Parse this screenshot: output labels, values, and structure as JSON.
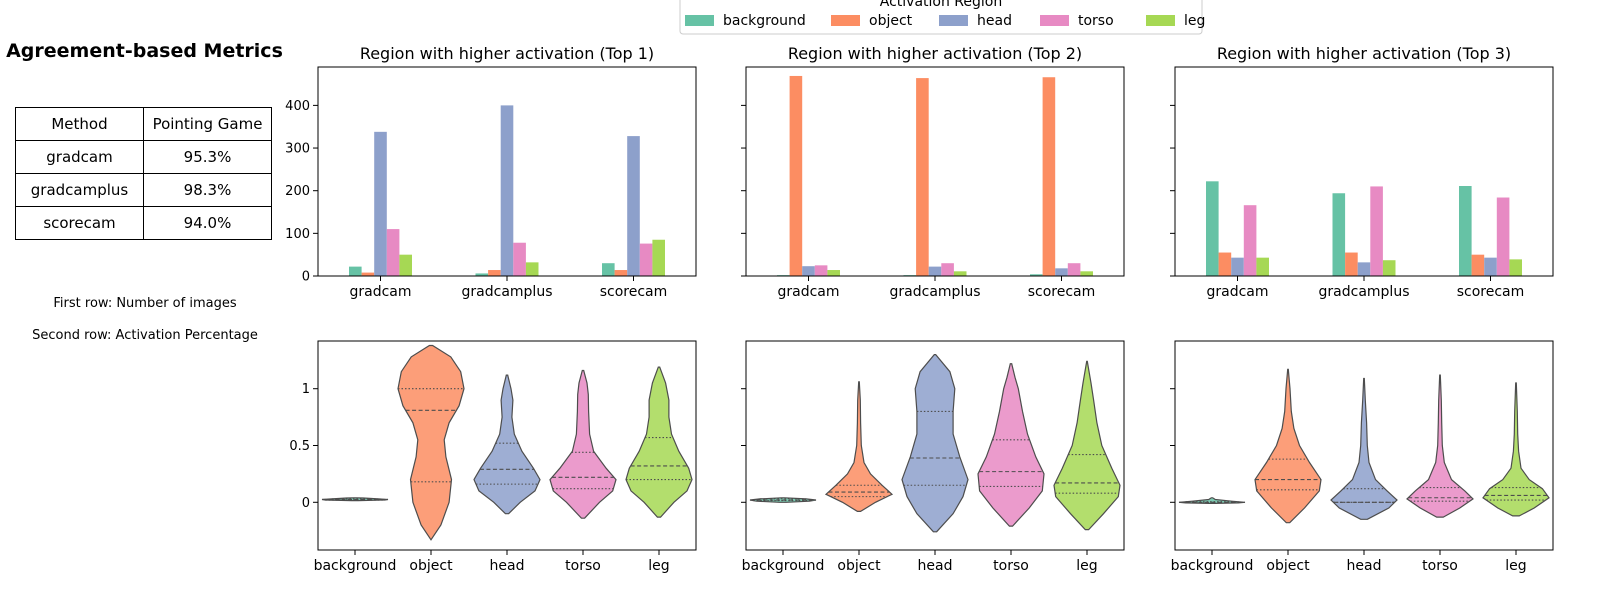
{
  "left_panel": {
    "title": "Agreement-based Metrics",
    "table": {
      "headers": [
        "Method",
        "Pointing Game"
      ],
      "rows": [
        [
          "gradcam",
          "95.3%"
        ],
        [
          "gradcamplus",
          "98.3%"
        ],
        [
          "scorecam",
          "94.0%"
        ]
      ]
    },
    "note_line1": "First row: Number of images",
    "note_line2": "Second row: Activation Percentage"
  },
  "legend": {
    "title": "Activation Region",
    "entries": [
      {
        "label": "background",
        "color": "#66c2a5"
      },
      {
        "label": "object",
        "color": "#fc8d62"
      },
      {
        "label": "head",
        "color": "#8da0cb"
      },
      {
        "label": "torso",
        "color": "#e78ac3"
      },
      {
        "label": "leg",
        "color": "#a6d854"
      }
    ]
  },
  "chart_data": [
    {
      "type": "bar",
      "title": "Region with higher activation (Top 1)",
      "categories": [
        "gradcam",
        "gradcamplus",
        "scorecam"
      ],
      "ylim": [
        0,
        490
      ],
      "yticks": [
        0,
        100,
        200,
        300,
        400
      ],
      "series": [
        {
          "name": "background",
          "values": [
            22,
            6,
            30
          ]
        },
        {
          "name": "object",
          "values": [
            8,
            14,
            14
          ]
        },
        {
          "name": "head",
          "values": [
            338,
            400,
            328
          ]
        },
        {
          "name": "torso",
          "values": [
            110,
            78,
            76
          ]
        },
        {
          "name": "leg",
          "values": [
            50,
            32,
            85
          ]
        }
      ]
    },
    {
      "type": "bar",
      "title": "Region with higher activation (Top 2)",
      "categories": [
        "gradcam",
        "gradcamplus",
        "scorecam"
      ],
      "ylim": [
        0,
        490
      ],
      "yticks": [
        0,
        100,
        200,
        300,
        400
      ],
      "series": [
        {
          "name": "background",
          "values": [
            2,
            2,
            4
          ]
        },
        {
          "name": "object",
          "values": [
            469,
            464,
            466
          ]
        },
        {
          "name": "head",
          "values": [
            23,
            22,
            18
          ]
        },
        {
          "name": "torso",
          "values": [
            25,
            30,
            30
          ]
        },
        {
          "name": "leg",
          "values": [
            14,
            11,
            11
          ]
        }
      ]
    },
    {
      "type": "bar",
      "title": "Region with higher activation (Top 3)",
      "categories": [
        "gradcam",
        "gradcamplus",
        "scorecam"
      ],
      "ylim": [
        0,
        490
      ],
      "yticks": [
        0,
        100,
        200,
        300,
        400
      ],
      "series": [
        {
          "name": "background",
          "values": [
            222,
            194,
            211
          ]
        },
        {
          "name": "object",
          "values": [
            55,
            55,
            50
          ]
        },
        {
          "name": "head",
          "values": [
            43,
            32,
            43
          ]
        },
        {
          "name": "torso",
          "values": [
            166,
            210,
            184
          ]
        },
        {
          "name": "leg",
          "values": [
            43,
            37,
            39
          ]
        }
      ]
    },
    {
      "type": "violin",
      "categories": [
        "background",
        "object",
        "head",
        "torso",
        "leg"
      ],
      "ylim": [
        -0.42,
        1.42
      ],
      "yticks": [
        0.0,
        0.5,
        1.0
      ],
      "violins": [
        {
          "min": 0.015,
          "max": 0.04,
          "quartiles": [
            0.02,
            0.025,
            0.03
          ],
          "profile": [
            [
              0.015,
              0.1
            ],
            [
              0.02,
              0.9
            ],
            [
              0.025,
              1.0
            ],
            [
              0.03,
              0.7
            ],
            [
              0.038,
              0.25
            ],
            [
              0.04,
              0.05
            ]
          ]
        },
        {
          "min": -0.33,
          "max": 1.38,
          "quartiles": [
            0.18,
            0.81,
            1.0
          ],
          "profile": [
            [
              -0.33,
              0.0
            ],
            [
              -0.2,
              0.3
            ],
            [
              0.0,
              0.55
            ],
            [
              0.2,
              0.62
            ],
            [
              0.4,
              0.45
            ],
            [
              0.55,
              0.4
            ],
            [
              0.7,
              0.55
            ],
            [
              0.85,
              0.85
            ],
            [
              1.0,
              1.0
            ],
            [
              1.15,
              0.9
            ],
            [
              1.28,
              0.6
            ],
            [
              1.38,
              0.05
            ]
          ]
        },
        {
          "min": -0.1,
          "max": 1.12,
          "quartiles": [
            0.16,
            0.29,
            0.52
          ],
          "profile": [
            [
              -0.1,
              0.05
            ],
            [
              0.0,
              0.4
            ],
            [
              0.1,
              0.85
            ],
            [
              0.2,
              1.0
            ],
            [
              0.3,
              0.8
            ],
            [
              0.45,
              0.45
            ],
            [
              0.6,
              0.22
            ],
            [
              0.75,
              0.15
            ],
            [
              0.9,
              0.18
            ],
            [
              1.0,
              0.12
            ],
            [
              1.12,
              0.02
            ]
          ]
        },
        {
          "min": -0.14,
          "max": 1.16,
          "quartiles": [
            0.12,
            0.22,
            0.44
          ],
          "profile": [
            [
              -0.14,
              0.05
            ],
            [
              0.0,
              0.5
            ],
            [
              0.1,
              0.9
            ],
            [
              0.2,
              1.0
            ],
            [
              0.3,
              0.7
            ],
            [
              0.45,
              0.32
            ],
            [
              0.6,
              0.2
            ],
            [
              0.8,
              0.17
            ],
            [
              0.95,
              0.16
            ],
            [
              1.05,
              0.12
            ],
            [
              1.16,
              0.02
            ]
          ]
        },
        {
          "min": -0.13,
          "max": 1.19,
          "quartiles": [
            0.2,
            0.32,
            0.57
          ],
          "profile": [
            [
              -0.13,
              0.05
            ],
            [
              0.0,
              0.45
            ],
            [
              0.1,
              0.85
            ],
            [
              0.2,
              1.0
            ],
            [
              0.3,
              0.9
            ],
            [
              0.45,
              0.6
            ],
            [
              0.6,
              0.38
            ],
            [
              0.75,
              0.3
            ],
            [
              0.9,
              0.3
            ],
            [
              1.05,
              0.2
            ],
            [
              1.19,
              0.02
            ]
          ]
        }
      ]
    },
    {
      "type": "violin",
      "categories": [
        "background",
        "object",
        "head",
        "torso",
        "leg"
      ],
      "ylim": [
        -0.42,
        1.42
      ],
      "yticks": [
        0.0,
        0.5,
        1.0
      ],
      "violins": [
        {
          "min": 0.0,
          "max": 0.04,
          "quartiles": [
            0.015,
            0.02,
            0.03
          ],
          "profile": [
            [
              0.0,
              0.1
            ],
            [
              0.01,
              0.8
            ],
            [
              0.02,
              1.0
            ],
            [
              0.03,
              0.7
            ],
            [
              0.04,
              0.05
            ]
          ]
        },
        {
          "min": -0.08,
          "max": 1.06,
          "quartiles": [
            0.05,
            0.09,
            0.15
          ],
          "profile": [
            [
              -0.08,
              0.05
            ],
            [
              0.0,
              0.5
            ],
            [
              0.07,
              1.0
            ],
            [
              0.15,
              0.7
            ],
            [
              0.25,
              0.35
            ],
            [
              0.35,
              0.15
            ],
            [
              0.5,
              0.07
            ],
            [
              0.7,
              0.05
            ],
            [
              0.9,
              0.04
            ],
            [
              1.06,
              0.01
            ]
          ]
        },
        {
          "min": -0.26,
          "max": 1.3,
          "quartiles": [
            0.15,
            0.39,
            0.8
          ],
          "profile": [
            [
              -0.26,
              0.05
            ],
            [
              -0.1,
              0.55
            ],
            [
              0.05,
              0.85
            ],
            [
              0.2,
              1.0
            ],
            [
              0.4,
              0.75
            ],
            [
              0.6,
              0.55
            ],
            [
              0.8,
              0.55
            ],
            [
              1.0,
              0.6
            ],
            [
              1.15,
              0.45
            ],
            [
              1.3,
              0.02
            ]
          ]
        },
        {
          "min": -0.21,
          "max": 1.22,
          "quartiles": [
            0.14,
            0.27,
            0.55
          ],
          "profile": [
            [
              -0.21,
              0.05
            ],
            [
              -0.05,
              0.55
            ],
            [
              0.1,
              0.95
            ],
            [
              0.25,
              1.0
            ],
            [
              0.4,
              0.75
            ],
            [
              0.6,
              0.5
            ],
            [
              0.8,
              0.35
            ],
            [
              1.0,
              0.22
            ],
            [
              1.1,
              0.12
            ],
            [
              1.22,
              0.02
            ]
          ]
        },
        {
          "min": -0.24,
          "max": 1.24,
          "quartiles": [
            0.08,
            0.17,
            0.42
          ],
          "profile": [
            [
              -0.24,
              0.05
            ],
            [
              -0.1,
              0.5
            ],
            [
              0.05,
              0.95
            ],
            [
              0.15,
              1.0
            ],
            [
              0.3,
              0.75
            ],
            [
              0.5,
              0.45
            ],
            [
              0.7,
              0.3
            ],
            [
              0.9,
              0.2
            ],
            [
              1.05,
              0.12
            ],
            [
              1.24,
              0.01
            ]
          ]
        }
      ]
    },
    {
      "type": "violin",
      "categories": [
        "background",
        "object",
        "head",
        "torso",
        "leg"
      ],
      "ylim": [
        -0.42,
        1.42
      ],
      "yticks": [
        0.0,
        0.5,
        1.0
      ],
      "violins": [
        {
          "min": -0.01,
          "max": 0.04,
          "quartiles": [
            -0.005,
            0.0,
            0.005
          ],
          "profile": [
            [
              -0.01,
              0.1
            ],
            [
              -0.005,
              0.8
            ],
            [
              0.0,
              1.0
            ],
            [
              0.01,
              0.6
            ],
            [
              0.025,
              0.1
            ],
            [
              0.04,
              0.02
            ]
          ]
        },
        {
          "min": -0.18,
          "max": 1.17,
          "quartiles": [
            0.11,
            0.2,
            0.38
          ],
          "profile": [
            [
              -0.18,
              0.05
            ],
            [
              -0.05,
              0.5
            ],
            [
              0.1,
              0.95
            ],
            [
              0.2,
              1.0
            ],
            [
              0.35,
              0.65
            ],
            [
              0.5,
              0.35
            ],
            [
              0.65,
              0.18
            ],
            [
              0.8,
              0.1
            ],
            [
              1.0,
              0.06
            ],
            [
              1.17,
              0.01
            ]
          ]
        },
        {
          "min": -0.15,
          "max": 1.09,
          "quartiles": [
            0.0,
            0.0,
            0.12
          ],
          "profile": [
            [
              -0.15,
              0.1
            ],
            [
              -0.05,
              0.75
            ],
            [
              0.02,
              1.0
            ],
            [
              0.1,
              0.7
            ],
            [
              0.2,
              0.35
            ],
            [
              0.35,
              0.15
            ],
            [
              0.5,
              0.1
            ],
            [
              0.7,
              0.08
            ],
            [
              0.9,
              0.04
            ],
            [
              1.09,
              0.01
            ]
          ]
        },
        {
          "min": -0.13,
          "max": 1.12,
          "quartiles": [
            0.01,
            0.04,
            0.13
          ],
          "profile": [
            [
              -0.13,
              0.1
            ],
            [
              -0.05,
              0.6
            ],
            [
              0.03,
              1.0
            ],
            [
              0.1,
              0.75
            ],
            [
              0.2,
              0.35
            ],
            [
              0.35,
              0.13
            ],
            [
              0.5,
              0.07
            ],
            [
              0.7,
              0.05
            ],
            [
              0.9,
              0.04
            ],
            [
              1.12,
              0.01
            ]
          ]
        },
        {
          "min": -0.12,
          "max": 1.05,
          "quartiles": [
            0.02,
            0.06,
            0.13
          ],
          "profile": [
            [
              -0.12,
              0.1
            ],
            [
              -0.05,
              0.55
            ],
            [
              0.04,
              1.0
            ],
            [
              0.12,
              0.8
            ],
            [
              0.2,
              0.4
            ],
            [
              0.3,
              0.15
            ],
            [
              0.45,
              0.08
            ],
            [
              0.6,
              0.05
            ],
            [
              0.8,
              0.04
            ],
            [
              1.05,
              0.01
            ]
          ]
        }
      ]
    }
  ]
}
